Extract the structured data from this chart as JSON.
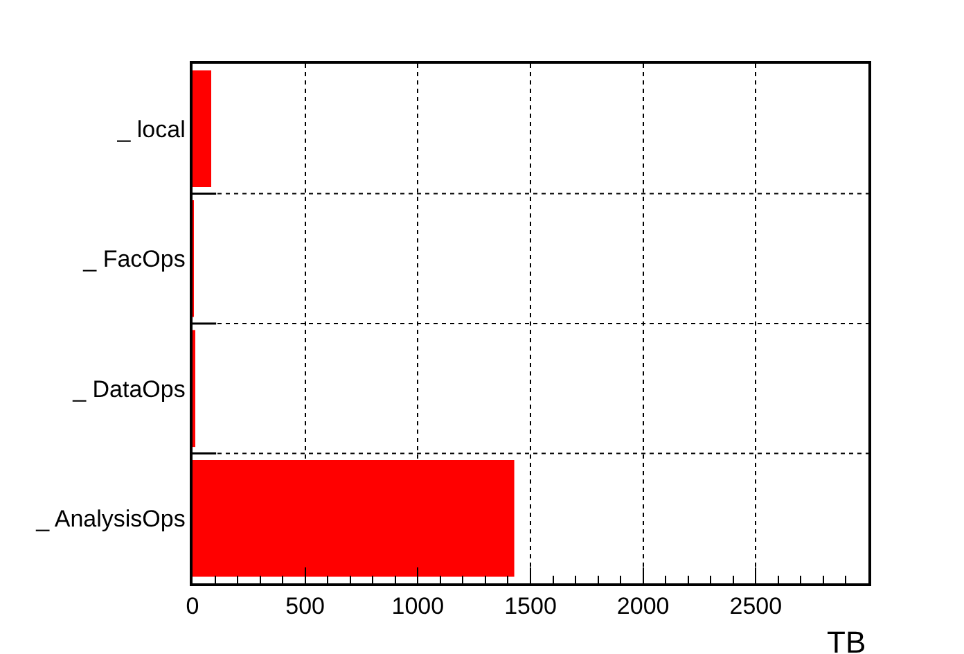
{
  "chart_data": {
    "type": "bar",
    "orientation": "horizontal",
    "xlabel": "TB",
    "categories": [
      "_ local",
      "_ FacOps",
      "_ DataOps",
      "_ AnalysisOps"
    ],
    "values": [
      83,
      1,
      10,
      1428
    ],
    "color": "#ff0000",
    "xlim": [
      0,
      3000
    ],
    "xticks": [
      0,
      500,
      1000,
      1500,
      2000,
      2500
    ],
    "grid": true
  }
}
